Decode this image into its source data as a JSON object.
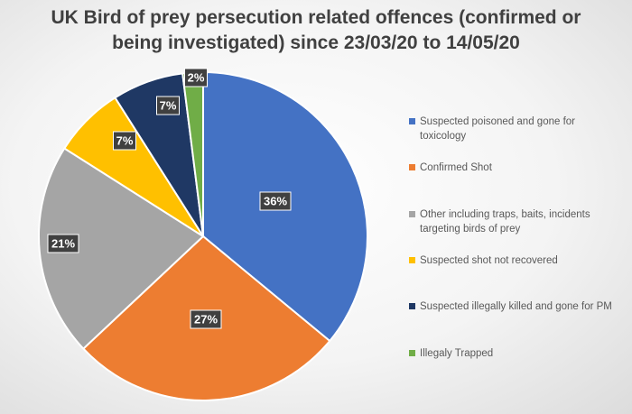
{
  "chart_data": {
    "type": "pie",
    "title_lines": [
      "UK Bird of prey persecution related offences (confirmed or",
      "being investigated) since 23/03/20 to 14/05/20"
    ],
    "slices": [
      {
        "label": "Suspected poisoned and gone for toxicology",
        "value": 36,
        "data_label": "36%",
        "color": "#4472c4"
      },
      {
        "label": "Confirmed Shot",
        "value": 27,
        "data_label": "27%",
        "color": "#ed7d31"
      },
      {
        "label": "Other including traps, baits, incidents targeting birds of prey",
        "value": 21,
        "data_label": "21%",
        "color": "#a5a5a5"
      },
      {
        "label": "Suspected shot not recovered",
        "value": 7,
        "data_label": "7%",
        "color": "#ffc000"
      },
      {
        "label": "Suspected illegally killed and gone for PM",
        "value": 7,
        "data_label": "7%",
        "color": "#1f3864"
      },
      {
        "label": "Illegaly Trapped",
        "value": 2,
        "data_label": "2%",
        "color": "#70ad47"
      }
    ],
    "legend_position": "right",
    "start_angle_deg": 0,
    "direction": "clockwise"
  }
}
